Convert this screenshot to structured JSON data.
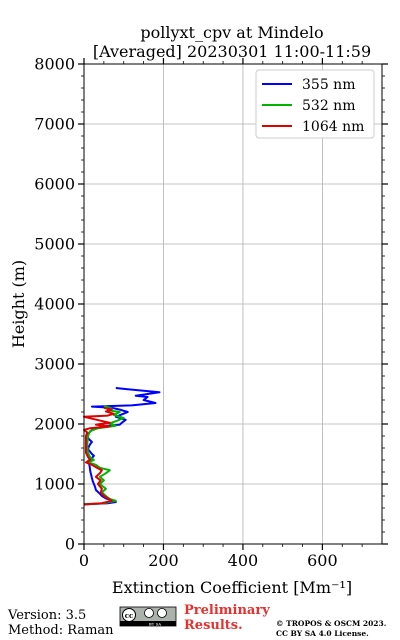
{
  "chart_data": {
    "type": "line",
    "title": "pollyxt_cpv at Mindelo",
    "subtitle": "[Averaged] 20230301 11:00-11:59",
    "xlabel": "Extinction Coefficient [Mm⁻¹]",
    "ylabel": "Height (m)",
    "xlim": [
      0,
      750
    ],
    "ylim": [
      0,
      8000
    ],
    "xticks": [
      0,
      200,
      400,
      600
    ],
    "yticks": [
      0,
      1000,
      2000,
      3000,
      4000,
      5000,
      6000,
      7000,
      8000
    ],
    "grid": true,
    "legend_position": "top-right",
    "series": [
      {
        "name": "355 nm",
        "color": "#0000ff",
        "points": [
          [
            0,
            660
          ],
          [
            60,
            680
          ],
          [
            80,
            700
          ],
          [
            70,
            730
          ],
          [
            55,
            760
          ],
          [
            45,
            800
          ],
          [
            38,
            850
          ],
          [
            30,
            900
          ],
          [
            28,
            950
          ],
          [
            25,
            1000
          ],
          [
            22,
            1050
          ],
          [
            20,
            1100
          ],
          [
            18,
            1150
          ],
          [
            16,
            1200
          ],
          [
            15,
            1250
          ],
          [
            14,
            1300
          ],
          [
            12,
            1350
          ],
          [
            10,
            1380
          ],
          [
            18,
            1420
          ],
          [
            25,
            1470
          ],
          [
            20,
            1500
          ],
          [
            15,
            1540
          ],
          [
            10,
            1580
          ],
          [
            12,
            1620
          ],
          [
            15,
            1660
          ],
          [
            20,
            1700
          ],
          [
            12,
            1750
          ],
          [
            8,
            1800
          ],
          [
            12,
            1850
          ],
          [
            20,
            1900
          ],
          [
            45,
            1960
          ],
          [
            90,
            1990
          ],
          [
            95,
            2020
          ],
          [
            105,
            2070
          ],
          [
            80,
            2120
          ],
          [
            95,
            2160
          ],
          [
            110,
            2200
          ],
          [
            90,
            2240
          ],
          [
            70,
            2270
          ],
          [
            20,
            2290
          ],
          [
            120,
            2310
          ],
          [
            180,
            2350
          ],
          [
            150,
            2400
          ],
          [
            160,
            2450
          ],
          [
            130,
            2470
          ],
          [
            190,
            2530
          ],
          [
            110,
            2580
          ],
          [
            80,
            2600
          ]
        ]
      },
      {
        "name": "532 nm",
        "color": "#00b400",
        "points": [
          [
            0,
            660
          ],
          [
            50,
            680
          ],
          [
            80,
            720
          ],
          [
            65,
            750
          ],
          [
            55,
            800
          ],
          [
            45,
            860
          ],
          [
            55,
            920
          ],
          [
            40,
            1000
          ],
          [
            50,
            1060
          ],
          [
            40,
            1120
          ],
          [
            55,
            1180
          ],
          [
            65,
            1230
          ],
          [
            40,
            1270
          ],
          [
            30,
            1320
          ],
          [
            10,
            1360
          ],
          [
            25,
            1400
          ],
          [
            15,
            1450
          ],
          [
            10,
            1520
          ],
          [
            8,
            1650
          ],
          [
            10,
            1800
          ],
          [
            15,
            1880
          ],
          [
            35,
            1930
          ],
          [
            80,
            1970
          ],
          [
            65,
            2010
          ],
          [
            85,
            2060
          ],
          [
            100,
            2100
          ],
          [
            75,
            2150
          ],
          [
            90,
            2200
          ],
          [
            60,
            2230
          ],
          [
            70,
            2260
          ],
          [
            50,
            2300
          ]
        ]
      },
      {
        "name": "1064 nm",
        "color": "#e00000",
        "points": [
          [
            0,
            660
          ],
          [
            45,
            680
          ],
          [
            70,
            720
          ],
          [
            60,
            760
          ],
          [
            50,
            800
          ],
          [
            42,
            860
          ],
          [
            45,
            920
          ],
          [
            35,
            1000
          ],
          [
            42,
            1060
          ],
          [
            30,
            1120
          ],
          [
            40,
            1180
          ],
          [
            45,
            1230
          ],
          [
            30,
            1280
          ],
          [
            20,
            1320
          ],
          [
            5,
            1360
          ],
          [
            15,
            1400
          ],
          [
            10,
            1450
          ],
          [
            5,
            1520
          ],
          [
            5,
            1650
          ],
          [
            5,
            1800
          ],
          [
            8,
            1860
          ],
          [
            0,
            1900
          ],
          [
            15,
            1930
          ],
          [
            65,
            1960
          ],
          [
            30,
            1990
          ],
          [
            65,
            2020
          ],
          [
            0,
            2120
          ],
          [
            60,
            2140
          ],
          [
            75,
            2170
          ],
          [
            55,
            2210
          ],
          [
            70,
            2240
          ],
          [
            50,
            2270
          ]
        ]
      }
    ]
  },
  "footer": {
    "version": "Version: 3.5",
    "method": "Method: Raman",
    "preliminary_line1": "Preliminary",
    "preliminary_line2": "Results.",
    "copyright_line1": "© TROPOS & OSCM 2023.",
    "copyright_line2": "CC BY SA 4.0 License.",
    "license_badge_text": "BY SA"
  }
}
